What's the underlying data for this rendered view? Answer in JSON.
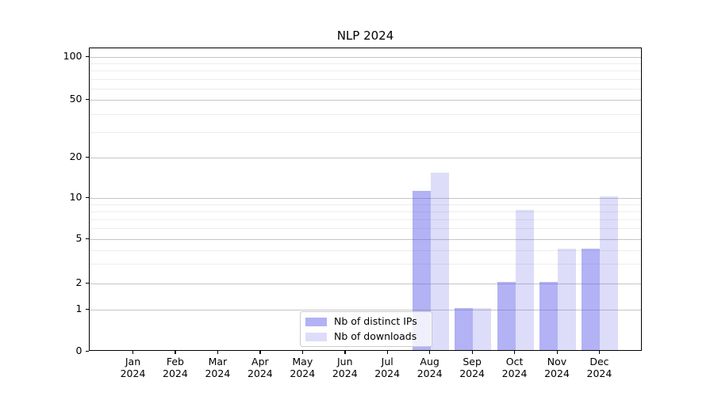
{
  "chart_data": {
    "type": "bar",
    "title": "NLP 2024",
    "categories": [
      "Jan",
      "Feb",
      "Mar",
      "Apr",
      "May",
      "Jun",
      "Jul",
      "Aug",
      "Sep",
      "Oct",
      "Nov",
      "Dec"
    ],
    "year_label": "2024",
    "series": [
      {
        "name": "Nb of distinct IPs",
        "color": "#5555e6",
        "alpha": 0.45,
        "flat_color": "#a9a9f4",
        "values": [
          0,
          0,
          0,
          0,
          0,
          0,
          0,
          11,
          1,
          2,
          2,
          4
        ]
      },
      {
        "name": "Nb of downloads",
        "color": "#5555e6",
        "alpha": 0.2,
        "flat_color": "#ddddfa",
        "values": [
          0,
          0,
          0,
          0,
          0,
          0,
          0,
          15,
          1,
          8,
          4,
          10
        ]
      }
    ],
    "yticks": [
      0,
      1,
      2,
      5,
      10,
      20,
      50,
      100
    ],
    "xlabel": "",
    "ylabel": "",
    "ylim": [
      0,
      115
    ],
    "yscale": "log-like with 0 baseline",
    "grid": "horizontal major and minor gridlines",
    "grid_major_color": "#c6c6c6",
    "grid_minor_color": "#ededed",
    "legend_position": "inside lower-center-left",
    "legend_border_color": "#cccccc"
  }
}
